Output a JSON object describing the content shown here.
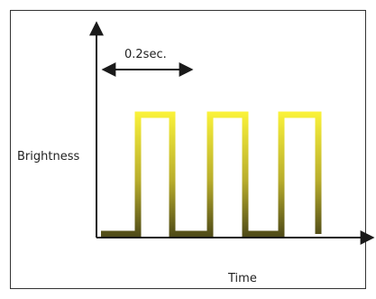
{
  "diagram": {
    "period_label": "0.2sec.",
    "y_axis_label": "Brightness",
    "x_axis_label": "Time"
  },
  "signal": {
    "type": "square-wave",
    "pulse_count": 3,
    "pulse_duration_sec": 0.2,
    "high_color": "#fbf33a",
    "low_color": "#4c4817"
  },
  "colors": {
    "axis": "#1a1a1a",
    "frame_border": "#333333"
  }
}
